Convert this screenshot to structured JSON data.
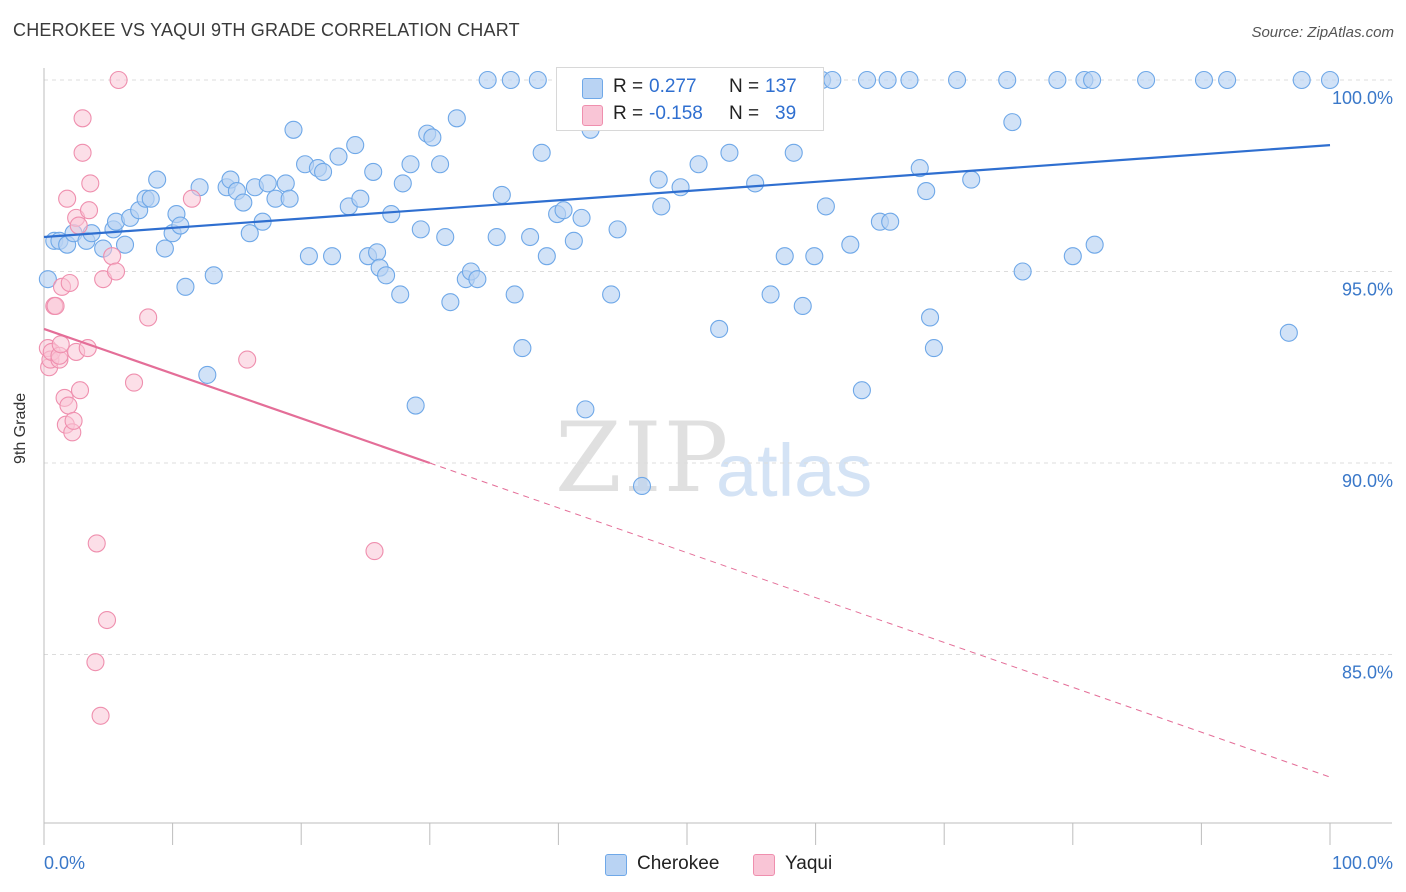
{
  "header": {
    "title": "CHEROKEE VS YAQUI 9TH GRADE CORRELATION CHART",
    "source": "Source: ZipAtlas.com"
  },
  "watermark": {
    "zip": "ZIP",
    "atlas": "atlas"
  },
  "legend": {
    "r_label": "R =",
    "n_label": "N =",
    "series": [
      {
        "name": "Cherokee",
        "r": "0.277",
        "n": "137",
        "color": "#6fa8e8",
        "fill": "#b9d3f3"
      },
      {
        "name": "Yaqui",
        "r": "-0.158",
        "n": "39",
        "color": "#ef8fae",
        "fill": "#f9c5d6"
      }
    ]
  },
  "colors": {
    "cherokee_line": "#2f6fd0",
    "yaqui_line": "#e46e98",
    "axis_text": "#3a78c9",
    "grid": "#dcdcdc"
  },
  "chart_data": {
    "type": "scatter",
    "title": "CHEROKEE VS YAQUI 9TH GRADE CORRELATION CHART",
    "xlabel": "",
    "ylabel": "9th Grade",
    "xlim": [
      0,
      100
    ],
    "ylim": [
      80.5,
      101
    ],
    "x_tick_labels": [
      "0.0%",
      "100.0%"
    ],
    "y_ticks": [
      100,
      95,
      90,
      85
    ],
    "y_tick_labels": [
      "100.0%",
      "95.0%",
      "90.0%",
      "85.0%"
    ],
    "grid": "horizontal dashed",
    "legend_position": "top-center",
    "series": [
      {
        "name": "Cherokee",
        "r": 0.277,
        "n": 137,
        "trend": {
          "x": [
            0,
            100
          ],
          "y": [
            95.9,
            98.3
          ]
        },
        "points": [
          [
            0.3,
            94.8
          ],
          [
            0.8,
            95.8
          ],
          [
            1.2,
            95.8
          ],
          [
            1.8,
            95.7
          ],
          [
            2.3,
            96.0
          ],
          [
            3.3,
            95.8
          ],
          [
            3.7,
            96.0
          ],
          [
            4.6,
            95.6
          ],
          [
            5.4,
            96.1
          ],
          [
            5.6,
            96.3
          ],
          [
            6.3,
            95.7
          ],
          [
            6.7,
            96.4
          ],
          [
            7.4,
            96.6
          ],
          [
            7.9,
            96.9
          ],
          [
            8.3,
            96.9
          ],
          [
            8.8,
            97.4
          ],
          [
            9.4,
            95.6
          ],
          [
            10.0,
            96.0
          ],
          [
            10.3,
            96.5
          ],
          [
            10.6,
            96.2
          ],
          [
            11.0,
            94.6
          ],
          [
            12.1,
            97.2
          ],
          [
            12.7,
            92.3
          ],
          [
            13.2,
            94.9
          ],
          [
            14.2,
            97.2
          ],
          [
            14.5,
            97.4
          ],
          [
            15.0,
            97.1
          ],
          [
            15.5,
            96.8
          ],
          [
            16.0,
            96.0
          ],
          [
            16.4,
            97.2
          ],
          [
            17.0,
            96.3
          ],
          [
            17.4,
            97.3
          ],
          [
            18.0,
            96.9
          ],
          [
            18.8,
            97.3
          ],
          [
            19.1,
            96.9
          ],
          [
            19.4,
            98.7
          ],
          [
            20.3,
            97.8
          ],
          [
            20.6,
            95.4
          ],
          [
            21.3,
            97.7
          ],
          [
            21.7,
            97.6
          ],
          [
            22.4,
            95.4
          ],
          [
            22.9,
            98.0
          ],
          [
            23.7,
            96.7
          ],
          [
            24.2,
            98.3
          ],
          [
            24.6,
            96.9
          ],
          [
            25.2,
            95.4
          ],
          [
            25.6,
            97.6
          ],
          [
            25.9,
            95.5
          ],
          [
            26.1,
            95.1
          ],
          [
            26.6,
            94.9
          ],
          [
            27.0,
            96.5
          ],
          [
            27.7,
            94.4
          ],
          [
            27.9,
            97.3
          ],
          [
            28.5,
            97.8
          ],
          [
            28.9,
            91.5
          ],
          [
            29.3,
            96.1
          ],
          [
            29.8,
            98.6
          ],
          [
            30.2,
            98.5
          ],
          [
            30.8,
            97.8
          ],
          [
            31.2,
            95.9
          ],
          [
            31.6,
            94.2
          ],
          [
            32.1,
            99.0
          ],
          [
            32.8,
            94.8
          ],
          [
            33.2,
            95.0
          ],
          [
            33.7,
            94.8
          ],
          [
            34.5,
            100.0
          ],
          [
            35.2,
            95.9
          ],
          [
            35.6,
            97.0
          ],
          [
            36.3,
            100.0
          ],
          [
            36.6,
            94.4
          ],
          [
            37.2,
            93.0
          ],
          [
            37.8,
            95.9
          ],
          [
            38.4,
            100.0
          ],
          [
            38.7,
            98.1
          ],
          [
            39.1,
            95.4
          ],
          [
            39.9,
            96.5
          ],
          [
            40.4,
            96.6
          ],
          [
            41.2,
            95.8
          ],
          [
            41.8,
            96.4
          ],
          [
            42.5,
            98.7
          ],
          [
            42.1,
            91.4
          ],
          [
            42.8,
            100.0
          ],
          [
            44.1,
            94.4
          ],
          [
            44.6,
            96.1
          ],
          [
            46.1,
            100.0
          ],
          [
            46.5,
            89.4
          ],
          [
            47.2,
            100.0
          ],
          [
            47.8,
            97.4
          ],
          [
            48.0,
            96.7
          ],
          [
            49.5,
            97.2
          ],
          [
            50.0,
            100.0
          ],
          [
            50.9,
            97.8
          ],
          [
            52.0,
            100.0
          ],
          [
            52.5,
            93.5
          ],
          [
            53.3,
            98.1
          ],
          [
            55.3,
            97.3
          ],
          [
            56.2,
            100.0
          ],
          [
            56.5,
            94.4
          ],
          [
            57.6,
            95.4
          ],
          [
            58.3,
            98.1
          ],
          [
            59.0,
            94.1
          ],
          [
            59.9,
            95.4
          ],
          [
            60.5,
            100.0
          ],
          [
            60.8,
            96.7
          ],
          [
            61.3,
            100.0
          ],
          [
            62.7,
            95.7
          ],
          [
            63.6,
            91.9
          ],
          [
            65.0,
            96.3
          ],
          [
            65.6,
            100.0
          ],
          [
            65.8,
            96.3
          ],
          [
            67.3,
            100.0
          ],
          [
            68.1,
            97.7
          ],
          [
            68.6,
            97.1
          ],
          [
            68.9,
            93.8
          ],
          [
            69.2,
            93.0
          ],
          [
            71.0,
            100.0
          ],
          [
            72.1,
            97.4
          ],
          [
            74.9,
            100.0
          ],
          [
            75.3,
            98.9
          ],
          [
            76.1,
            95.0
          ],
          [
            80.0,
            95.4
          ],
          [
            80.9,
            100.0
          ],
          [
            81.7,
            95.7
          ],
          [
            81.5,
            100.0
          ],
          [
            85.7,
            100.0
          ],
          [
            90.2,
            100.0
          ],
          [
            92.0,
            100.0
          ],
          [
            96.8,
            93.4
          ],
          [
            97.8,
            100.0
          ],
          [
            100.0,
            100.0
          ],
          [
            78.8,
            100.0
          ],
          [
            64.0,
            100.0
          ],
          [
            55.0,
            100.0
          ]
        ]
      },
      {
        "name": "Yaqui",
        "r": -0.158,
        "n": 39,
        "trend": {
          "x": [
            0,
            30
          ],
          "y": [
            93.5,
            90.0
          ],
          "dashed_extension": {
            "x": [
              30,
              100
            ],
            "y": [
              90.0,
              81.8
            ]
          }
        },
        "points": [
          [
            0.3,
            93.0
          ],
          [
            0.4,
            92.5
          ],
          [
            0.5,
            92.7
          ],
          [
            0.6,
            92.9
          ],
          [
            0.8,
            94.1
          ],
          [
            0.9,
            94.1
          ],
          [
            1.2,
            92.7
          ],
          [
            1.2,
            92.8
          ],
          [
            1.3,
            93.1
          ],
          [
            1.4,
            94.6
          ],
          [
            1.6,
            91.7
          ],
          [
            1.7,
            91.0
          ],
          [
            1.8,
            96.9
          ],
          [
            1.9,
            91.5
          ],
          [
            2.0,
            94.7
          ],
          [
            2.2,
            90.8
          ],
          [
            2.3,
            91.1
          ],
          [
            2.5,
            96.4
          ],
          [
            2.5,
            92.9
          ],
          [
            2.7,
            96.2
          ],
          [
            2.8,
            91.9
          ],
          [
            3.0,
            99.0
          ],
          [
            3.0,
            98.1
          ],
          [
            3.4,
            93.0
          ],
          [
            3.5,
            96.6
          ],
          [
            3.6,
            97.3
          ],
          [
            4.1,
            87.9
          ],
          [
            4.0,
            84.8
          ],
          [
            4.4,
            83.4
          ],
          [
            4.6,
            94.8
          ],
          [
            4.9,
            85.9
          ],
          [
            5.3,
            95.4
          ],
          [
            5.6,
            95.0
          ],
          [
            5.8,
            100.0
          ],
          [
            7.0,
            92.1
          ],
          [
            8.1,
            93.8
          ],
          [
            11.5,
            96.9
          ],
          [
            15.8,
            92.7
          ],
          [
            25.7,
            87.7
          ]
        ]
      }
    ]
  }
}
